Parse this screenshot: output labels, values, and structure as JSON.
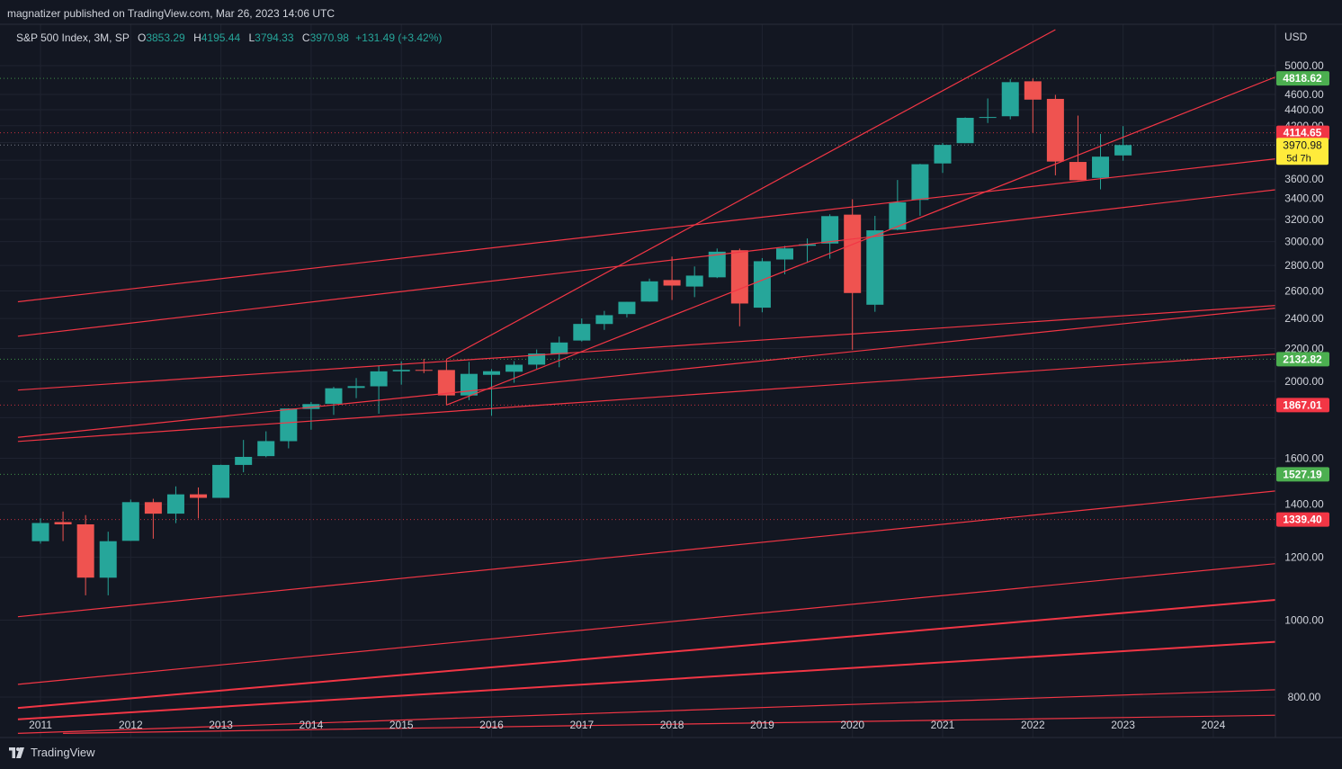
{
  "header": {
    "published": "magnatizer published on TradingView.com, Mar 26, 2023 14:06 UTC"
  },
  "legend": {
    "symbol": "S&P 500 Index, 3M, SP",
    "open_label": "O",
    "open": "3853.29",
    "high_label": "H",
    "high": "4195.44",
    "low_label": "L",
    "low": "3794.33",
    "close_label": "C",
    "close": "3970.98",
    "change": "+131.49 (+3.42%)"
  },
  "price_axis": {
    "currency": "USD",
    "ticks": [
      "5000.00",
      "4600.00",
      "4400.00",
      "4200.00",
      "3800.00",
      "3600.00",
      "3400.00",
      "3200.00",
      "3000.00",
      "2800.00",
      "2600.00",
      "2400.00",
      "2200.00",
      "2000.00",
      "1600.00",
      "1400.00",
      "1200.00",
      "1000.00",
      "800.00"
    ]
  },
  "time_axis": {
    "labels": [
      "2011",
      "2012",
      "2013",
      "2014",
      "2015",
      "2016",
      "2017",
      "2018",
      "2019",
      "2020",
      "2021",
      "2022",
      "2023",
      "2024"
    ]
  },
  "price_labels": [
    {
      "text": "4818.62",
      "value": 4818.62,
      "color": "#4caf50",
      "line": "#4caf50"
    },
    {
      "text": "4114.65",
      "value": 4114.65,
      "color": "#f23645",
      "line": "#f23645"
    },
    {
      "text": "2132.82",
      "value": 2132.82,
      "color": "#4caf50",
      "line": "#4caf50"
    },
    {
      "text": "1867.01",
      "value": 1867.01,
      "color": "#f23645",
      "line": "#f23645"
    },
    {
      "text": "1527.19",
      "value": 1527.19,
      "color": "#4caf50",
      "line": "#4caf50"
    },
    {
      "text": "1339.40",
      "value": 1339.4,
      "color": "#f23645",
      "line": "#f23645"
    }
  ],
  "last_price": {
    "text": "3970.98",
    "countdown": "5d 7h",
    "value": 3970.98,
    "color": "#ffeb3b"
  },
  "footer": {
    "brand": "TradingView"
  },
  "colors": {
    "up": "#26a69a",
    "down": "#ef5350",
    "trendline": "#f23645",
    "background": "#131722",
    "grid": "#1f2330"
  },
  "chart_data": {
    "type": "candlestick",
    "title": "S&P 500 Index, 3M, SP",
    "scale": "log",
    "ylim": [
      720,
      5250
    ],
    "xlim": [
      "2010-10",
      "2025-02"
    ],
    "candles": [
      {
        "t": "2011-01",
        "o": 1257.6,
        "h": 1344.1,
        "l": 1249.1,
        "c": 1325.8
      },
      {
        "t": "2011-04",
        "o": 1329.5,
        "h": 1370.6,
        "l": 1258.1,
        "c": 1320.6
      },
      {
        "t": "2011-07",
        "o": 1320.6,
        "h": 1356.5,
        "l": 1074.8,
        "c": 1131.4
      },
      {
        "t": "2011-10",
        "o": 1131.2,
        "h": 1292.7,
        "l": 1074.8,
        "c": 1257.6
      },
      {
        "t": "2012-01",
        "o": 1258.9,
        "h": 1419.2,
        "l": 1258.9,
        "c": 1408.5
      },
      {
        "t": "2012-04",
        "o": 1408.5,
        "h": 1422.4,
        "l": 1266.7,
        "c": 1362.2
      },
      {
        "t": "2012-07",
        "o": 1362.3,
        "h": 1474.5,
        "l": 1325.4,
        "c": 1440.7
      },
      {
        "t": "2012-10",
        "o": 1440.9,
        "h": 1470.0,
        "l": 1343.4,
        "c": 1426.2
      },
      {
        "t": "2013-01",
        "o": 1426.2,
        "h": 1570.3,
        "l": 1426.2,
        "c": 1569.2
      },
      {
        "t": "2013-04",
        "o": 1569.2,
        "h": 1687.2,
        "l": 1536.0,
        "c": 1606.3
      },
      {
        "t": "2013-07",
        "o": 1609.8,
        "h": 1729.9,
        "l": 1604.6,
        "c": 1681.6
      },
      {
        "t": "2013-10",
        "o": 1681.2,
        "h": 1849.4,
        "l": 1646.5,
        "c": 1848.4
      },
      {
        "t": "2014-01",
        "o": 1845.9,
        "h": 1883.9,
        "l": 1737.9,
        "c": 1872.3
      },
      {
        "t": "2014-04",
        "o": 1873.9,
        "h": 1968.2,
        "l": 1814.4,
        "c": 1960.2
      },
      {
        "t": "2014-07",
        "o": 1962.3,
        "h": 2019.3,
        "l": 1904.8,
        "c": 1972.3
      },
      {
        "t": "2014-10",
        "o": 1971.4,
        "h": 2093.6,
        "l": 1820.7,
        "c": 2058.9
      },
      {
        "t": "2015-01",
        "o": 2058.9,
        "h": 2119.6,
        "l": 1980.9,
        "c": 2067.9
      },
      {
        "t": "2015-04",
        "o": 2067.6,
        "h": 2134.7,
        "l": 2048.4,
        "c": 2063.1
      },
      {
        "t": "2015-07",
        "o": 2067.0,
        "h": 2132.8,
        "l": 1867.0,
        "c": 1920.0
      },
      {
        "t": "2015-10",
        "o": 1919.7,
        "h": 2116.5,
        "l": 1893.7,
        "c": 2043.9
      },
      {
        "t": "2016-01",
        "o": 2038.2,
        "h": 2072.2,
        "l": 1810.1,
        "c": 2059.7
      },
      {
        "t": "2016-04",
        "o": 2056.6,
        "h": 2120.6,
        "l": 1991.7,
        "c": 2098.9
      },
      {
        "t": "2016-07",
        "o": 2099.3,
        "h": 2193.8,
        "l": 2074.0,
        "c": 2168.3
      },
      {
        "t": "2016-10",
        "o": 2164.3,
        "h": 2277.5,
        "l": 2083.8,
        "c": 2238.8
      },
      {
        "t": "2017-01",
        "o": 2251.6,
        "h": 2400.9,
        "l": 2245.1,
        "c": 2362.7
      },
      {
        "t": "2017-04",
        "o": 2362.3,
        "h": 2453.8,
        "l": 2322.3,
        "c": 2423.4
      },
      {
        "t": "2017-07",
        "o": 2431.4,
        "h": 2519.4,
        "l": 2407.7,
        "c": 2519.4
      },
      {
        "t": "2017-10",
        "o": 2521.2,
        "h": 2694.9,
        "l": 2520.4,
        "c": 2673.6
      },
      {
        "t": "2018-01",
        "o": 2683.7,
        "h": 2872.9,
        "l": 2532.7,
        "c": 2640.9
      },
      {
        "t": "2018-04",
        "o": 2633.5,
        "h": 2791.5,
        "l": 2553.8,
        "c": 2718.4
      },
      {
        "t": "2018-07",
        "o": 2704.9,
        "h": 2940.9,
        "l": 2698.9,
        "c": 2913.9
      },
      {
        "t": "2018-10",
        "o": 2926.3,
        "h": 2939.9,
        "l": 2346.6,
        "c": 2506.9
      },
      {
        "t": "2019-01",
        "o": 2476.9,
        "h": 2860.3,
        "l": 2443.9,
        "c": 2834.4
      },
      {
        "t": "2019-04",
        "o": 2848.6,
        "h": 2964.2,
        "l": 2728.8,
        "c": 2941.8
      },
      {
        "t": "2019-07",
        "o": 2964.3,
        "h": 3028.0,
        "l": 2822.1,
        "c": 2976.7
      },
      {
        "t": "2019-10",
        "o": 2983.7,
        "h": 3247.9,
        "l": 2855.9,
        "c": 3230.8
      },
      {
        "t": "2020-01",
        "o": 3244.7,
        "h": 3393.5,
        "l": 2191.9,
        "c": 2584.6
      },
      {
        "t": "2020-04",
        "o": 2498.1,
        "h": 3233.1,
        "l": 2447.5,
        "c": 3100.3
      },
      {
        "t": "2020-07",
        "o": 3105.9,
        "h": 3588.1,
        "l": 3101.2,
        "c": 3363.0
      },
      {
        "t": "2020-10",
        "o": 3385.9,
        "h": 3760.2,
        "l": 3233.9,
        "c": 3756.1
      },
      {
        "t": "2021-01",
        "o": 3764.6,
        "h": 3994.4,
        "l": 3662.7,
        "c": 3972.9
      },
      {
        "t": "2021-04",
        "o": 3992.8,
        "h": 4302.8,
        "l": 3992.8,
        "c": 4297.5
      },
      {
        "t": "2021-07",
        "o": 4300.7,
        "h": 4545.9,
        "l": 4233.1,
        "c": 4307.5
      },
      {
        "t": "2021-10",
        "o": 4317.2,
        "h": 4808.9,
        "l": 4278.9,
        "c": 4766.2
      },
      {
        "t": "2022-01",
        "o": 4778.1,
        "h": 4818.6,
        "l": 4114.7,
        "c": 4530.4
      },
      {
        "t": "2022-04",
        "o": 4540.3,
        "h": 4593.5,
        "l": 3636.9,
        "c": 3785.4
      },
      {
        "t": "2022-07",
        "o": 3781.0,
        "h": 4325.3,
        "l": 3584.1,
        "c": 3585.6
      },
      {
        "t": "2022-10",
        "o": 3609.8,
        "h": 4100.9,
        "l": 3491.6,
        "c": 3839.5
      },
      {
        "t": "2023-01",
        "o": 3853.3,
        "h": 4195.4,
        "l": 3794.3,
        "c": 3971.0
      }
    ],
    "trendlines": [
      {
        "from": [
          "2010-10",
          1700
        ],
        "to": [
          "2025-02",
          2500
        ]
      },
      {
        "from": [
          "2010-10",
          1680
        ],
        "to": [
          "2025-02",
          2180
        ]
      },
      {
        "from": [
          "2010-10",
          1950
        ],
        "to": [
          "2025-02",
          2510
        ]
      },
      {
        "from": [
          "2010-10",
          2520
        ],
        "to": [
          "2025-02",
          3860
        ]
      },
      {
        "from": [
          "2010-10",
          2280
        ],
        "to": [
          "2025-02",
          3530
        ]
      },
      {
        "from": [
          "2015-07",
          2132.8
        ],
        "to": [
          "2022-04",
          5550
        ]
      },
      {
        "from": [
          "2015-07",
          1867.0
        ],
        "to": [
          "2025-02",
          5040
        ]
      },
      {
        "from": [
          "2010-10",
          1010
        ],
        "to": [
          "2025-02",
          1470
        ]
      },
      {
        "from": [
          "2010-10",
          830
        ],
        "to": [
          "2025-02",
          1190
        ]
      },
      {
        "from": [
          "2010-10",
          775
        ],
        "to": [
          "2025-02",
          1070
        ]
      },
      {
        "from": [
          "2010-10",
          750
        ],
        "to": [
          "2025-02",
          945
        ]
      },
      {
        "from": [
          "2010-10",
          720
        ],
        "to": [
          "2025-02",
          820
        ]
      },
      {
        "from": [
          "2011-04",
          720
        ],
        "to": [
          "2025-02",
          760
        ]
      }
    ]
  }
}
